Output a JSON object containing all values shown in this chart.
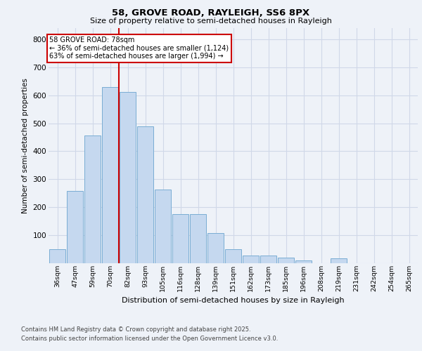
{
  "title1": "58, GROVE ROAD, RAYLEIGH, SS6 8PX",
  "title2": "Size of property relative to semi-detached houses in Rayleigh",
  "xlabel": "Distribution of semi-detached houses by size in Rayleigh",
  "ylabel": "Number of semi-detached properties",
  "bar_labels": [
    "36sqm",
    "47sqm",
    "59sqm",
    "70sqm",
    "82sqm",
    "93sqm",
    "105sqm",
    "116sqm",
    "128sqm",
    "139sqm",
    "151sqm",
    "162sqm",
    "173sqm",
    "185sqm",
    "196sqm",
    "208sqm",
    "219sqm",
    "231sqm",
    "242sqm",
    "254sqm",
    "265sqm"
  ],
  "bar_values": [
    50,
    258,
    457,
    630,
    612,
    490,
    263,
    175,
    175,
    108,
    50,
    28,
    28,
    20,
    10,
    0,
    18,
    0,
    0,
    0,
    0
  ],
  "bar_color": "#c5d8ef",
  "bar_edge_color": "#7aadd4",
  "vline_index": 3.5,
  "vline_color": "#cc0000",
  "annotation_text": "58 GROVE ROAD: 78sqm\n← 36% of semi-detached houses are smaller (1,124)\n63% of semi-detached houses are larger (1,994) →",
  "annotation_box_color": "#ffffff",
  "annotation_box_edgecolor": "#cc0000",
  "ylim": [
    0,
    840
  ],
  "yticks": [
    0,
    100,
    200,
    300,
    400,
    500,
    600,
    700,
    800
  ],
  "bg_color": "#eef2f8",
  "grid_color": "#d0d8e8",
  "footer1": "Contains HM Land Registry data © Crown copyright and database right 2025.",
  "footer2": "Contains public sector information licensed under the Open Government Licence v3.0."
}
